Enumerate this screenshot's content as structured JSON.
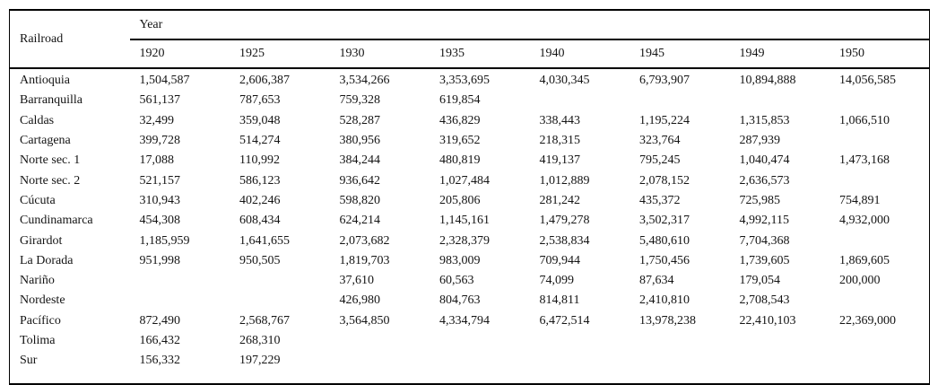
{
  "table": {
    "corner_header": "Railroad",
    "year_group_header": "Year",
    "years": [
      "1920",
      "1925",
      "1930",
      "1935",
      "1940",
      "1945",
      "1949",
      "1950"
    ],
    "rows": [
      {
        "railroad": "Antioquia",
        "values": [
          "1,504,587",
          "2,606,387",
          "3,534,266",
          "3,353,695",
          "4,030,345",
          "6,793,907",
          "10,894,888",
          "14,056,585"
        ]
      },
      {
        "railroad": "Barranquilla",
        "values": [
          "561,137",
          "787,653",
          "759,328",
          "619,854",
          "",
          "",
          "",
          ""
        ]
      },
      {
        "railroad": "Caldas",
        "values": [
          "32,499",
          "359,048",
          "528,287",
          "436,829",
          "338,443",
          "1,195,224",
          "1,315,853",
          "1,066,510"
        ]
      },
      {
        "railroad": "Cartagena",
        "values": [
          "399,728",
          "514,274",
          "380,956",
          "319,652",
          "218,315",
          "323,764",
          "287,939",
          ""
        ]
      },
      {
        "railroad": "Norte sec. 1",
        "values": [
          "17,088",
          "110,992",
          "384,244",
          "480,819",
          "419,137",
          "795,245",
          "1,040,474",
          "1,473,168"
        ]
      },
      {
        "railroad": "Norte sec. 2",
        "values": [
          "521,157",
          "586,123",
          "936,642",
          "1,027,484",
          "1,012,889",
          "2,078,152",
          "2,636,573",
          ""
        ]
      },
      {
        "railroad": "Cúcuta",
        "values": [
          "310,943",
          "402,246",
          "598,820",
          "205,806",
          "281,242",
          "435,372",
          "725,985",
          "754,891"
        ]
      },
      {
        "railroad": "Cundinamarca",
        "values": [
          "454,308",
          "608,434",
          "624,214",
          "1,145,161",
          "1,479,278",
          "3,502,317",
          "4,992,115",
          "4,932,000"
        ]
      },
      {
        "railroad": "Girardot",
        "values": [
          "1,185,959",
          "1,641,655",
          "2,073,682",
          "2,328,379",
          "2,538,834",
          "5,480,610",
          "7,704,368",
          ""
        ]
      },
      {
        "railroad": "La Dorada",
        "values": [
          "951,998",
          "950,505",
          "1,819,703",
          "983,009",
          "709,944",
          "1,750,456",
          "1,739,605",
          "1,869,605"
        ]
      },
      {
        "railroad": "Nariño",
        "values": [
          "",
          "",
          "37,610",
          "60,563",
          "74,099",
          "87,634",
          "179,054",
          "200,000"
        ]
      },
      {
        "railroad": "Nordeste",
        "values": [
          "",
          "",
          "426,980",
          "804,763",
          "814,811",
          "2,410,810",
          "2,708,543",
          ""
        ]
      },
      {
        "railroad": "Pacífico",
        "values": [
          "872,490",
          "2,568,767",
          "3,564,850",
          "4,334,794",
          "6,472,514",
          "13,978,238",
          "22,410,103",
          "22,369,000"
        ]
      },
      {
        "railroad": "Tolima",
        "values": [
          "166,432",
          "268,310",
          "",
          "",
          "",
          "",
          "",
          ""
        ]
      },
      {
        "railroad": "Sur",
        "values": [
          "156,332",
          "197,229",
          "",
          "",
          "",
          "",
          "",
          ""
        ]
      }
    ]
  }
}
